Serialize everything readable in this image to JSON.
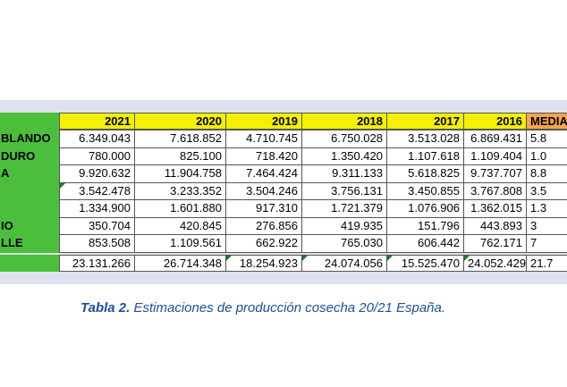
{
  "table": {
    "header": [
      "2021",
      "2020",
      "2019",
      "2018",
      "2017",
      "2016",
      "MEDIA"
    ],
    "rows": [
      {
        "label": "BLANDO",
        "cells": [
          "6.349.043",
          "7.618.852",
          "4.710.745",
          "6.750.028",
          "3.513.028",
          "6.869.431",
          "5.8"
        ]
      },
      {
        "label": "DURO",
        "cells": [
          "780.000",
          "825.100",
          "718.420",
          "1.350.420",
          "1.107.618",
          "1.109.404",
          "1.0"
        ]
      },
      {
        "label": "A",
        "cells": [
          "9.920.632",
          "11.904.758",
          "7.464.424",
          "9.311.133",
          "5.618.825",
          "9.737.707",
          "8.8"
        ]
      },
      {
        "label": null,
        "cells": [
          "3.542.478",
          "3.233.352",
          "3.504.246",
          "3.756.131",
          "3.450.855",
          "3.767.808",
          "3.5"
        ]
      },
      {
        "label": null,
        "cells": [
          "1.334.900",
          "1.601.880",
          "917.310",
          "1.721.379",
          "1.076.906",
          "1.362.015",
          "1.3"
        ]
      },
      {
        "label": "IO",
        "cells": [
          "350.704",
          "420.845",
          "276.856",
          "419.935",
          "151.796",
          "443.893",
          "3"
        ]
      },
      {
        "label": "LLE",
        "cells": [
          "853.508",
          "1.109.561",
          "662.922",
          "765.030",
          "606.442",
          "762.171",
          "7"
        ]
      }
    ],
    "totals": [
      "23.131.266",
      "26.714.348",
      "18.254.923",
      "24.074.056",
      "15.525.470",
      "24.052.429",
      "21.7"
    ]
  },
  "caption": {
    "label": "Tabla 2.",
    "text": "Estimaciones de producción cosecha 20/21 España."
  }
}
